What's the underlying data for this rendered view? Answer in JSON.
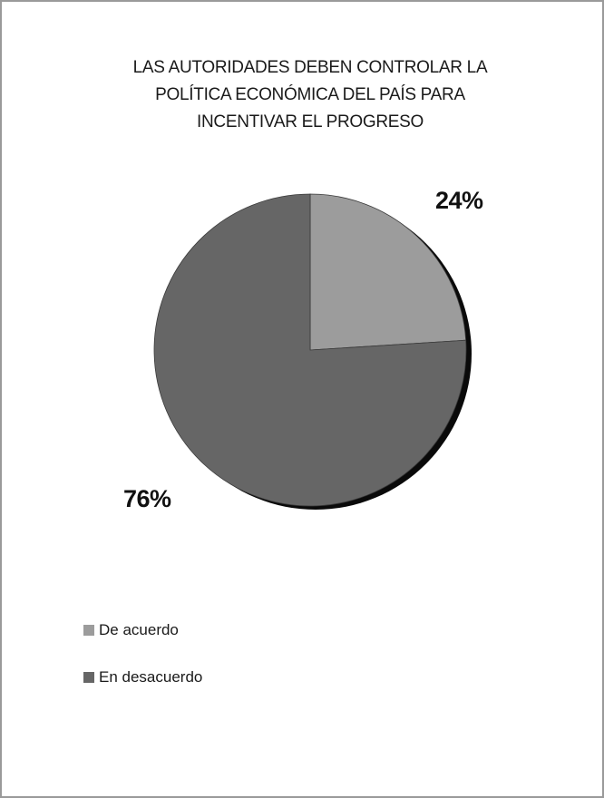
{
  "chart_data": {
    "type": "pie",
    "title": "LAS AUTORIDADES DEBEN CONTROLAR LA POLÍTICA ECONÓMICA DEL PAÍS PARA INCENTIVAR EL PROGRESO",
    "title_lines": [
      "LAS AUTORIDADES DEBEN CONTROLAR LA",
      "POLÍTICA ECONÓMICA DEL PAÍS PARA",
      "INCENTIVAR EL PROGRESO"
    ],
    "categories": [
      "De acuerdo",
      "En desacuerdo"
    ],
    "values": [
      24,
      76
    ],
    "data_labels": [
      "24%",
      "76%"
    ],
    "colors": [
      "#9c9c9c",
      "#666666"
    ],
    "legend_position": "bottom-left",
    "shadow_color": "#0a0a0a"
  }
}
